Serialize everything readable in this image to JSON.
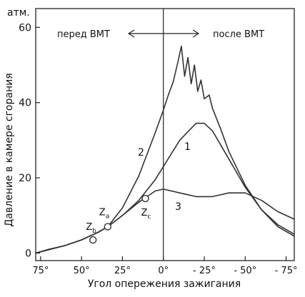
{
  "chart_data": {
    "type": "line",
    "title": "",
    "xlabel": "Угол опережения зажигания",
    "ylabel": "Давление в камере сгорания",
    "y_unit": "атм.",
    "xlim": [
      78,
      -80
    ],
    "ylim": [
      -2,
      65
    ],
    "x_ticks": [
      {
        "value": 75,
        "label": "75°"
      },
      {
        "value": 50,
        "label": "50°"
      },
      {
        "value": 25,
        "label": "25°"
      },
      {
        "value": 0,
        "label": "0°"
      },
      {
        "value": -25,
        "label": "- 25°"
      },
      {
        "value": -50,
        "label": "- 50°"
      },
      {
        "value": -75,
        "label": "- 75°"
      }
    ],
    "y_ticks": [
      {
        "value": 0,
        "label": "0"
      },
      {
        "value": 20,
        "label": "20"
      },
      {
        "value": 40,
        "label": "40"
      },
      {
        "value": 60,
        "label": "60"
      }
    ],
    "grid": false,
    "region_labels": {
      "left": "перед ВМТ",
      "right": "после ВМТ"
    },
    "series": [
      {
        "label": "1",
        "x": [
          78,
          70,
          60,
          50,
          40,
          34,
          25,
          15,
          5,
          0,
          -10,
          -20,
          -25,
          -30,
          -40,
          -50,
          -60,
          -70,
          -80
        ],
        "y": [
          0,
          1,
          2,
          3.5,
          5.5,
          7,
          10,
          14,
          19.5,
          23,
          30,
          34.5,
          34.5,
          32.5,
          25,
          17.5,
          11.5,
          7.5,
          5
        ]
      },
      {
        "label": "2",
        "x": [
          78,
          60,
          50,
          40,
          34,
          25,
          15,
          5,
          0,
          -3,
          -6,
          -9,
          -11,
          -13,
          -15,
          -17,
          -19,
          -21,
          -23,
          -25,
          -28,
          -30,
          -35,
          -40,
          -50,
          -60,
          -70,
          -80
        ],
        "y": [
          0,
          2,
          3.5,
          5.5,
          7,
          12,
          20.5,
          32,
          38,
          42,
          45.5,
          51,
          55,
          47,
          52,
          45,
          50,
          43,
          46,
          41,
          42,
          38.5,
          33,
          27,
          18,
          11.5,
          7,
          4.5
        ]
      },
      {
        "label": "3",
        "x": [
          78,
          60,
          50,
          40,
          34,
          25,
          15,
          10,
          5,
          0,
          -10,
          -20,
          -30,
          -40,
          -50,
          -60,
          -70,
          -80
        ],
        "y": [
          0,
          2,
          3.5,
          5.5,
          7,
          10,
          13.5,
          15,
          16.5,
          17,
          16,
          15,
          15,
          16,
          16,
          14,
          11,
          9
        ]
      }
    ],
    "points": [
      {
        "label": "Z",
        "sub": "b",
        "x": 43,
        "y": 3.5
      },
      {
        "label": "Z",
        "sub": "a",
        "x": 34,
        "y": 7
      },
      {
        "label": "Z",
        "sub": "c",
        "x": 11,
        "y": 14.5
      }
    ]
  }
}
